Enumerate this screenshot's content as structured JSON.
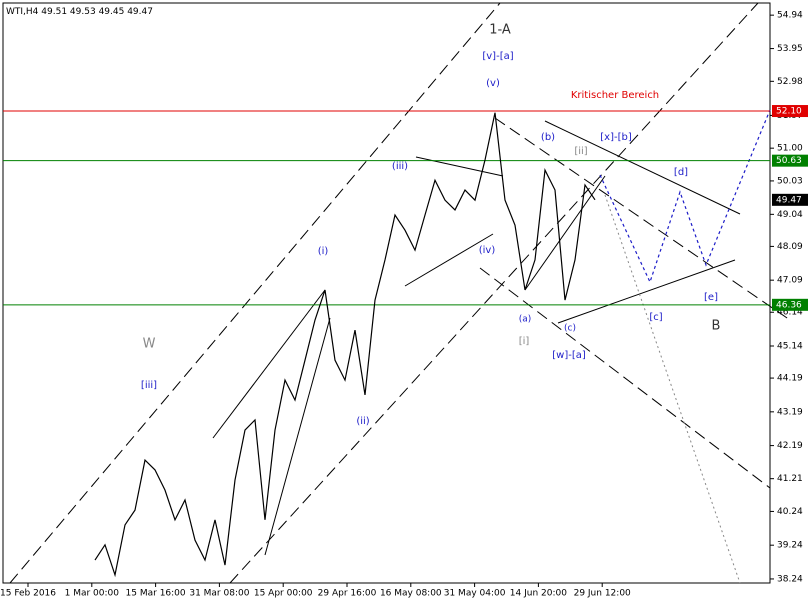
{
  "chart_data": {
    "type": "line",
    "symbol": "WTI,H4",
    "ohlc": [
      49.51,
      49.53,
      49.45,
      49.47
    ],
    "series": [
      {
        "name": "WTI",
        "color": "#000000",
        "values": [
          38.8,
          39.25,
          38.36,
          39.84,
          40.28,
          41.76,
          41.47,
          40.87,
          39.99,
          40.58,
          39.39,
          38.8,
          39.99,
          38.65,
          41.17,
          42.65,
          42.95,
          39.99,
          42.65,
          44.13,
          43.54,
          44.72,
          45.91,
          46.8,
          44.72,
          44.13,
          45.61,
          43.69,
          46.5,
          47.69,
          49.02,
          48.57,
          47.98,
          49.02,
          50.05,
          49.46,
          49.17,
          49.76,
          49.46,
          50.65,
          52.05,
          49.46,
          48.72,
          46.8,
          47.69,
          50.35,
          49.76,
          46.5,
          47.69,
          49.91,
          49.47
        ]
      }
    ],
    "xticks": [
      "15 Feb 2016",
      "1 Mar 00:00",
      "15 Mar 16:00",
      "31 Mar 08:00",
      "15 Apr 00:00",
      "29 Apr 16:00",
      "16 May 08:00",
      "31 May 04:00",
      "14 Jun 20:00",
      "29 Jun 12:00"
    ],
    "ylim": [
      38.12,
      55.3
    ],
    "yticks": [
      54.94,
      53.95,
      52.98,
      51.97,
      {
        "value": 51,
        "label": "51.00"
      },
      50.03,
      49.04,
      48.09,
      47.09,
      46.14,
      45.14,
      44.19,
      43.19,
      42.19,
      41.21,
      40.24,
      39.24,
      38.24
    ],
    "levels": [
      {
        "value": 52.1,
        "label": "52.10",
        "color": "#e00000"
      },
      {
        "value": 50.63,
        "color": "#008000"
      },
      {
        "value": 46.36,
        "color": "#008000"
      }
    ],
    "current_price": 49.47,
    "annotations": [
      "1-A",
      "[v]-[a]",
      "(v)",
      "Kritischer Bereich",
      "(b)",
      "[x]-[b]",
      "[ii]",
      "(iii)",
      "[d]",
      "(i)",
      "(iv)",
      "(a)",
      "[i]",
      "(c)",
      "[w]-[a]",
      "[c]",
      "[e]",
      "B",
      "W",
      "[iii]",
      "(ii)"
    ]
  }
}
